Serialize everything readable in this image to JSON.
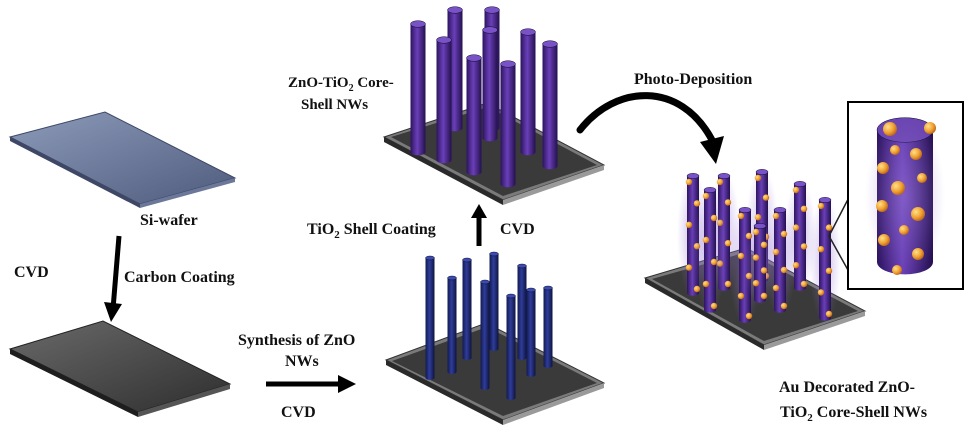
{
  "labels": {
    "si_wafer": "Si-wafer",
    "cvd_step1": "CVD",
    "carbon_coating": "Carbon Coating",
    "synthesis_line1": "Synthesis of ZnO",
    "synthesis_line2": "NWs",
    "cvd_step2": "CVD",
    "tio2_shell": "TiO",
    "tio2_shell_sub": "2",
    "tio2_shell_rest": " Shell Coating",
    "cvd_step3": "CVD",
    "core_shell_line1_a": "ZnO-TiO",
    "core_shell_line1_sub": "2",
    "core_shell_line1_b": " Core-",
    "core_shell_line2": "Shell NWs",
    "photo_deposition": "Photo-Deposition",
    "au_line1": "Au Decorated ZnO-",
    "au_line2_a": "TiO",
    "au_line2_sub": "2",
    "au_line2_b": " Core-Shell NWs"
  },
  "colors": {
    "wafer_blue": "#5d6a8c",
    "wafer_dark": "#3a3a3a",
    "zno_rod": "#1f2a6b",
    "core_shell_rod": "#4a2a86",
    "au_particle": "#e89a2a",
    "arrow": "#000000"
  }
}
